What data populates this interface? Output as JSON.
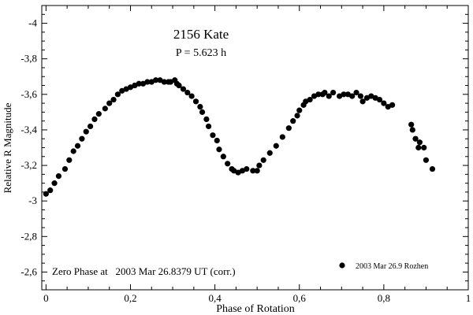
{
  "chart_data": {
    "type": "scatter",
    "title": "2156 Kate",
    "subtitle": "P = 5.623 h",
    "xlabel": "Phase of Rotation",
    "ylabel": "Relative R Magnitude",
    "xlim": [
      -0.01,
      1.0
    ],
    "ylim": [
      -2.5,
      -4.1
    ],
    "y_reversed": true,
    "grid": false,
    "x_ticks": [
      {
        "value": 0,
        "label": "0"
      },
      {
        "value": 0.2,
        "label": "0,2"
      },
      {
        "value": 0.4,
        "label": "0,4"
      },
      {
        "value": 0.6,
        "label": "0,6"
      },
      {
        "value": 0.8,
        "label": "0,8"
      },
      {
        "value": 1.0,
        "label": "1"
      }
    ],
    "y_ticks": [
      {
        "value": -2.6,
        "label": "-2,6"
      },
      {
        "value": -2.8,
        "label": "-2,8"
      },
      {
        "value": -3.0,
        "label": "-3"
      },
      {
        "value": -3.2,
        "label": "-3,2"
      },
      {
        "value": -3.4,
        "label": "-3,4"
      },
      {
        "value": -3.6,
        "label": "-3,6"
      },
      {
        "value": -3.8,
        "label": "-3,8"
      },
      {
        "value": -4.0,
        "label": "-4"
      }
    ],
    "annotation": "Zero Phase at   2003 Mar 26.8379 UT (corr.)",
    "legend_position": "bottom-right",
    "series": [
      {
        "name": "2003 Mar 26.9 Rozhen",
        "color": "#000000",
        "x": [
          0.0,
          0.01,
          0.02,
          0.03,
          0.045,
          0.055,
          0.065,
          0.075,
          0.085,
          0.095,
          0.105,
          0.115,
          0.125,
          0.14,
          0.15,
          0.16,
          0.17,
          0.18,
          0.19,
          0.2,
          0.21,
          0.22,
          0.23,
          0.24,
          0.25,
          0.26,
          0.27,
          0.28,
          0.29,
          0.295,
          0.305,
          0.31,
          0.315,
          0.325,
          0.335,
          0.345,
          0.355,
          0.365,
          0.37,
          0.38,
          0.385,
          0.395,
          0.405,
          0.41,
          0.42,
          0.43,
          0.44,
          0.445,
          0.455,
          0.465,
          0.475,
          0.49,
          0.5,
          0.505,
          0.515,
          0.53,
          0.545,
          0.56,
          0.575,
          0.585,
          0.595,
          0.6,
          0.61,
          0.615,
          0.625,
          0.635,
          0.645,
          0.655,
          0.66,
          0.67,
          0.68,
          0.695,
          0.705,
          0.715,
          0.725,
          0.735,
          0.745,
          0.75,
          0.76,
          0.77,
          0.78,
          0.79,
          0.8,
          0.81,
          0.82,
          0.865,
          0.868,
          0.875,
          0.882,
          0.885,
          0.895,
          0.9,
          0.915
        ],
        "y": [
          -3.04,
          -3.06,
          -3.1,
          -3.14,
          -3.18,
          -3.23,
          -3.28,
          -3.31,
          -3.35,
          -3.39,
          -3.42,
          -3.46,
          -3.49,
          -3.52,
          -3.55,
          -3.57,
          -3.6,
          -3.62,
          -3.63,
          -3.64,
          -3.65,
          -3.66,
          -3.66,
          -3.67,
          -3.67,
          -3.68,
          -3.68,
          -3.67,
          -3.67,
          -3.67,
          -3.68,
          -3.66,
          -3.65,
          -3.63,
          -3.61,
          -3.59,
          -3.56,
          -3.53,
          -3.5,
          -3.46,
          -3.42,
          -3.37,
          -3.34,
          -3.29,
          -3.25,
          -3.21,
          -3.18,
          -3.17,
          -3.16,
          -3.17,
          -3.18,
          -3.17,
          -3.17,
          -3.2,
          -3.23,
          -3.27,
          -3.31,
          -3.36,
          -3.41,
          -3.45,
          -3.48,
          -3.51,
          -3.54,
          -3.56,
          -3.57,
          -3.59,
          -3.6,
          -3.6,
          -3.61,
          -3.59,
          -3.61,
          -3.59,
          -3.6,
          -3.6,
          -3.59,
          -3.61,
          -3.59,
          -3.56,
          -3.58,
          -3.59,
          -3.58,
          -3.57,
          -3.55,
          -3.53,
          -3.54,
          -3.43,
          -3.4,
          -3.35,
          -3.3,
          -3.33,
          -3.3,
          -3.23,
          -3.18
        ]
      }
    ]
  }
}
